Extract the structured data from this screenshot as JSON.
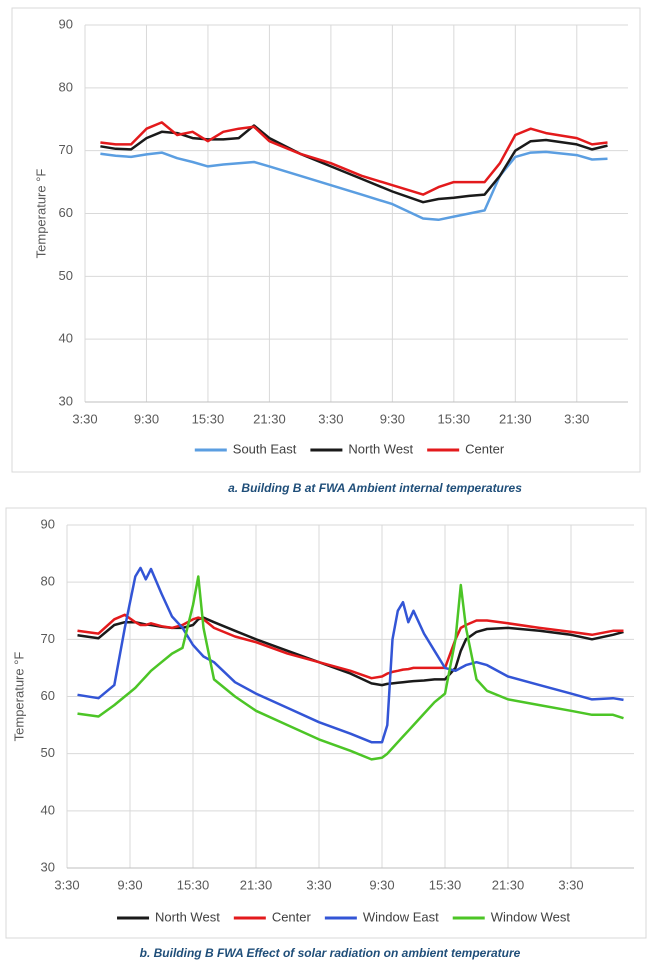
{
  "chart_data": [
    {
      "type": "line",
      "y_label": "Temperature °F",
      "caption": "a. Building B at FWA Ambient internal temperatures",
      "x": [
        1.5,
        3,
        4.5,
        6,
        7.5,
        9,
        10.5,
        12,
        13.5,
        15,
        16.5,
        18,
        21,
        24,
        27,
        30,
        33,
        34.5,
        36,
        37.5,
        39,
        40.5,
        42,
        43.5,
        45,
        48,
        49.5,
        51
      ],
      "xlim": [
        0,
        53
      ],
      "xticks": [
        {
          "value": 0,
          "label": "3:30"
        },
        {
          "value": 6,
          "label": "9:30"
        },
        {
          "value": 12,
          "label": "15:30"
        },
        {
          "value": 18,
          "label": "21:30"
        },
        {
          "value": 24,
          "label": "3:30"
        },
        {
          "value": 30,
          "label": "9:30"
        },
        {
          "value": 36,
          "label": "15:30"
        },
        {
          "value": 42,
          "label": "21:30"
        },
        {
          "value": 48,
          "label": "3:30"
        }
      ],
      "ylim": [
        30,
        90
      ],
      "yticks": [
        30,
        40,
        50,
        60,
        70,
        80,
        90
      ],
      "grid": true,
      "series": [
        {
          "name": "South East",
          "color": "#5b9ee1",
          "values": [
            69.5,
            69.2,
            69,
            69.4,
            69.7,
            68.8,
            68.2,
            67.5,
            67.8,
            68,
            68.2,
            67.5,
            66,
            64.5,
            63,
            61.5,
            59.2,
            59,
            59.5,
            60,
            60.5,
            66,
            69,
            69.7,
            69.8,
            69.3,
            68.6,
            68.7
          ]
        },
        {
          "name": "North West",
          "color": "#1a1a1a",
          "values": [
            70.7,
            70.3,
            70.2,
            72,
            73,
            72.8,
            72,
            71.8,
            71.8,
            72,
            74,
            72,
            69.5,
            67.5,
            65.5,
            63.5,
            61.8,
            62.3,
            62.5,
            62.8,
            63,
            66,
            70,
            71.5,
            71.7,
            71,
            70.2,
            70.8
          ]
        },
        {
          "name": "Center",
          "color": "#e31a1c",
          "values": [
            71.3,
            71,
            71,
            73.5,
            74.5,
            72.5,
            73,
            71.5,
            73,
            73.5,
            73.8,
            71.5,
            69.5,
            68,
            66,
            64.5,
            63,
            64.2,
            65,
            65,
            65,
            68,
            72.5,
            73.5,
            72.8,
            72,
            71,
            71.3
          ]
        }
      ]
    },
    {
      "type": "line",
      "y_label": "Temperature °F",
      "caption": "b. Building B FWA Effect of solar radiation on ambient temperature",
      "x": [
        1,
        3,
        4.5,
        5.5,
        6.5,
        7,
        7.5,
        8,
        9,
        10,
        11,
        12,
        12.5,
        13,
        14,
        16,
        18,
        21,
        24,
        27,
        29,
        30,
        30.5,
        31,
        31.5,
        32,
        32.5,
        33,
        34,
        35,
        36,
        37,
        37.5,
        38,
        39,
        40,
        42,
        45,
        48,
        50,
        52,
        53
      ],
      "xlim": [
        0,
        54
      ],
      "xticks": [
        {
          "value": 0,
          "label": "3:30"
        },
        {
          "value": 6,
          "label": "9:30"
        },
        {
          "value": 12,
          "label": "15:30"
        },
        {
          "value": 18,
          "label": "21:30"
        },
        {
          "value": 24,
          "label": "3:30"
        },
        {
          "value": 30,
          "label": "9:30"
        },
        {
          "value": 36,
          "label": "15:30"
        },
        {
          "value": 42,
          "label": "21:30"
        },
        {
          "value": 48,
          "label": "3:30"
        }
      ],
      "ylim": [
        30,
        90
      ],
      "yticks": [
        30,
        40,
        50,
        60,
        70,
        80,
        90
      ],
      "grid": true,
      "series": [
        {
          "name": "North West",
          "color": "#1a1a1a",
          "values": [
            70.7,
            70.2,
            72.5,
            73,
            73,
            72.8,
            72.6,
            72.5,
            72.2,
            72,
            72,
            72.5,
            73.5,
            73.8,
            73,
            71.5,
            70,
            68,
            66,
            64,
            62.3,
            62,
            62.2,
            62.3,
            62.4,
            62.5,
            62.6,
            62.7,
            62.8,
            63,
            63,
            65,
            68,
            70,
            71.3,
            71.8,
            72,
            71.5,
            70.8,
            70,
            70.8,
            71.3
          ]
        },
        {
          "name": "Center",
          "color": "#e31a1c",
          "values": [
            71.5,
            71,
            73.5,
            74.3,
            73,
            72.5,
            72.5,
            72.8,
            72.3,
            72,
            72.5,
            73.5,
            73.8,
            73.5,
            72,
            70.5,
            69.5,
            67.5,
            66,
            64.5,
            63.2,
            63.5,
            64,
            64.3,
            64.5,
            64.7,
            64.8,
            65,
            65,
            65,
            65,
            70,
            72,
            72.5,
            73.3,
            73.3,
            72.8,
            72,
            71.3,
            70.8,
            71.5,
            71.5
          ]
        },
        {
          "name": "Window East",
          "color": "#3355d6",
          "values": [
            60.3,
            59.7,
            62,
            72,
            81,
            82.5,
            80.5,
            82.3,
            78,
            74,
            72,
            69,
            68,
            67,
            66,
            62.5,
            60.5,
            58,
            55.5,
            53.5,
            52,
            52,
            55,
            70,
            75,
            76.5,
            73,
            75,
            71,
            68,
            65,
            64.5,
            65,
            65.5,
            66,
            65.5,
            63.5,
            62,
            60.5,
            59.5,
            59.7,
            59.4
          ]
        },
        {
          "name": "Window West",
          "color": "#4cc526",
          "values": [
            57,
            56.5,
            58.5,
            60,
            61.5,
            62.5,
            63.5,
            64.5,
            66,
            67.5,
            68.5,
            76,
            81,
            72,
            63,
            60,
            57.5,
            55,
            52.5,
            50.5,
            49,
            49.3,
            50,
            51,
            52,
            53,
            54,
            55,
            57,
            59,
            60.5,
            70,
            79.5,
            72,
            63,
            61,
            59.5,
            58.5,
            57.5,
            56.8,
            56.8,
            56.2
          ]
        }
      ]
    }
  ]
}
